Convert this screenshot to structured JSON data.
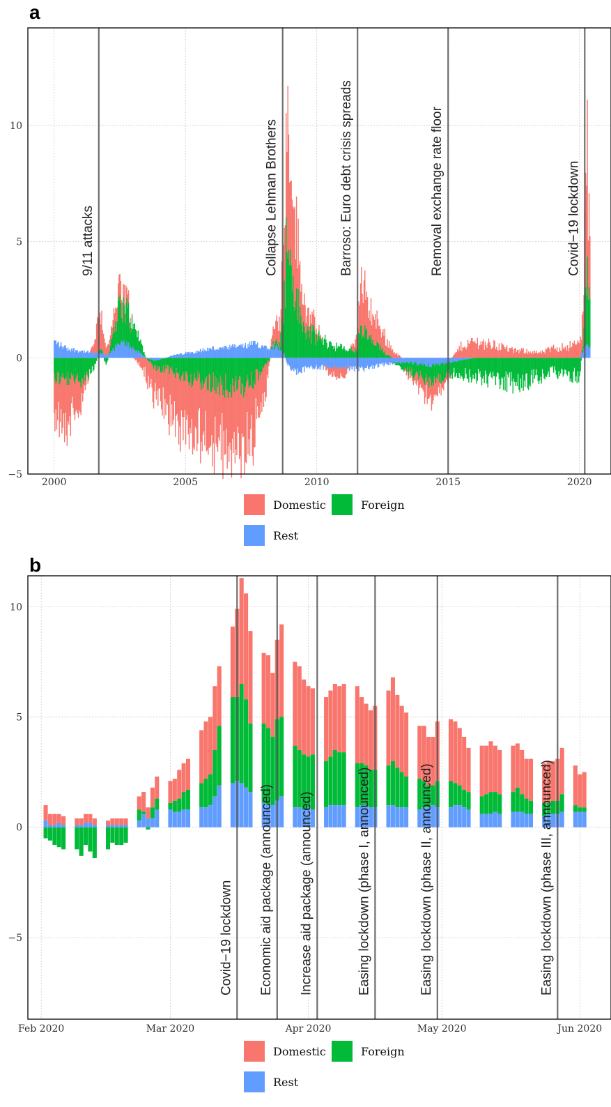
{
  "colors": {
    "Domestic": "#f8766d",
    "Foreign": "#00ba38",
    "Rest": "#619cff"
  },
  "chart_data": [
    {
      "panel": "a",
      "type": "bar",
      "stacked": true,
      "description": "Daily decomposition into Domestic, Foreign and Rest components, 2000–2020 (values approximated from the figure)",
      "x_range": [
        1999.0,
        2021.2
      ],
      "ylim": [
        -5,
        14.2
      ],
      "yticks": [
        -5,
        0,
        5,
        10
      ],
      "xticks": [
        2000,
        2005,
        2010,
        2015,
        2020
      ],
      "series_names": [
        "Domestic",
        "Foreign",
        "Rest"
      ],
      "envelope": {
        "t": [
          2000.0,
          2000.5,
          2001.0,
          2001.5,
          2001.75,
          2002.0,
          2002.3,
          2002.5,
          2002.8,
          2003.0,
          2003.3,
          2003.5,
          2003.8,
          2004.0,
          2004.5,
          2005.0,
          2005.5,
          2006.0,
          2006.5,
          2007.0,
          2007.3,
          2007.6,
          2008.0,
          2008.3,
          2008.6,
          2008.75,
          2008.85,
          2009.0,
          2009.2,
          2009.5,
          2010.0,
          2010.5,
          2011.0,
          2011.5,
          2011.7,
          2012.0,
          2012.5,
          2013.0,
          2013.5,
          2014.0,
          2014.5,
          2015.0,
          2015.5,
          2016.0,
          2016.5,
          2017.0,
          2017.5,
          2018.0,
          2018.5,
          2019.0,
          2019.5,
          2020.0,
          2020.15,
          2020.22,
          2020.3,
          2020.4
        ],
        "domestic": [
          -1.5,
          -2.0,
          -1.0,
          0.4,
          1.8,
          0.3,
          0.6,
          0.8,
          0.5,
          0.0,
          -0.3,
          -0.8,
          -1.2,
          -1.5,
          -2.0,
          -2.3,
          -2.4,
          -2.5,
          -2.5,
          -2.6,
          -2.6,
          -2.4,
          -1.5,
          0.5,
          1.2,
          3.0,
          6.0,
          5.0,
          3.0,
          1.2,
          0.3,
          -0.3,
          -0.5,
          0.5,
          2.0,
          1.3,
          0.8,
          0.2,
          -0.2,
          -0.6,
          -0.8,
          -0.2,
          0.5,
          0.7,
          0.6,
          0.5,
          0.3,
          0.3,
          0.2,
          0.4,
          0.5,
          0.6,
          1.5,
          3.5,
          5.0,
          2.0
        ],
        "foreign": [
          -0.8,
          -1.0,
          -0.9,
          -0.5,
          0.3,
          -0.3,
          1.0,
          1.6,
          1.4,
          1.0,
          0.5,
          0.0,
          -0.3,
          -0.4,
          -0.6,
          -0.8,
          -1.0,
          -1.1,
          -1.2,
          -1.3,
          -1.2,
          -1.0,
          -0.4,
          0.1,
          0.3,
          2.0,
          5.0,
          4.0,
          2.5,
          1.2,
          0.9,
          0.6,
          0.4,
          0.3,
          1.2,
          0.8,
          0.3,
          -0.1,
          -0.4,
          -0.6,
          -0.7,
          -0.5,
          -0.6,
          -0.8,
          -0.9,
          -1.0,
          -1.1,
          -1.0,
          -0.8,
          -0.6,
          -0.7,
          -0.8,
          0.5,
          2.5,
          3.0,
          1.5
        ],
        "rest": [
          0.7,
          0.4,
          0.3,
          0.2,
          0.2,
          0.1,
          0.4,
          0.6,
          0.6,
          0.4,
          0.2,
          0.0,
          -0.1,
          -0.1,
          0.1,
          0.2,
          0.3,
          0.4,
          0.4,
          0.5,
          0.5,
          0.6,
          0.5,
          0.5,
          0.4,
          0.2,
          -0.2,
          -0.4,
          -0.6,
          -0.5,
          -0.4,
          -0.4,
          -0.4,
          -0.5,
          -0.5,
          -0.4,
          -0.3,
          -0.2,
          -0.2,
          -0.3,
          -0.3,
          -0.2,
          -0.1,
          0.0,
          0.0,
          0.0,
          0.0,
          0.0,
          0.0,
          0.0,
          0.0,
          0.0,
          0.3,
          0.5,
          0.6,
          0.4
        ]
      },
      "events": [
        {
          "t": 2001.7,
          "label": "9/11 attacks"
        },
        {
          "t": 2008.7,
          "label": "Collapse Lehman Brothers"
        },
        {
          "t": 2011.55,
          "label": "Barroso: Euro debt crisis spreads"
        },
        {
          "t": 2015.0,
          "label": "Removal exchange rate floor"
        },
        {
          "t": 2020.2,
          "label": "Covid−19 lockdown"
        }
      ],
      "legend": [
        "Domestic",
        "Foreign",
        "Rest"
      ]
    },
    {
      "panel": "b",
      "type": "bar",
      "stacked": true,
      "description": "Daily decomposition, Feb–Jun 2020 (day 0 = 2020-01-30; values approximated)",
      "x_range": [
        -1.0,
        130.0
      ],
      "ylim": [
        -8.7,
        11.4
      ],
      "yticks": [
        -5,
        0,
        5,
        10
      ],
      "xticks": [
        {
          "day": 2,
          "label": "Feb 2020"
        },
        {
          "day": 31,
          "label": "Mar 2020"
        },
        {
          "day": 62,
          "label": "Apr 2020"
        },
        {
          "day": 92,
          "label": "May 2020"
        },
        {
          "day": 123,
          "label": "Jun 2020"
        }
      ],
      "series_names": [
        "Domestic",
        "Foreign",
        "Rest"
      ],
      "days": [
        3,
        4,
        5,
        6,
        7,
        10,
        11,
        12,
        13,
        14,
        17,
        18,
        19,
        20,
        21,
        24,
        25,
        26,
        27,
        28,
        31,
        32,
        33,
        34,
        35,
        38,
        39,
        40,
        41,
        42,
        45,
        46,
        47,
        48,
        49,
        52,
        53,
        54,
        55,
        56,
        59,
        60,
        61,
        62,
        63,
        66,
        67,
        68,
        69,
        70,
        73,
        74,
        75,
        76,
        77,
        80,
        81,
        82,
        83,
        84,
        87,
        88,
        89,
        90,
        91,
        94,
        95,
        96,
        97,
        98,
        101,
        102,
        103,
        104,
        105,
        108,
        109,
        110,
        111,
        112,
        115,
        116,
        117,
        118,
        119,
        122,
        123,
        124
      ],
      "domestic": [
        0.7,
        0.5,
        0.5,
        0.4,
        0.4,
        0.3,
        0.3,
        0.4,
        0.4,
        0.3,
        0.2,
        0.3,
        0.3,
        0.3,
        0.3,
        0.6,
        0.9,
        0.5,
        0.9,
        1.0,
        1.0,
        1.0,
        1.3,
        1.3,
        1.4,
        2.4,
        2.6,
        2.6,
        2.9,
        2.7,
        3.2,
        4.0,
        4.8,
        4.8,
        4.2,
        3.2,
        3.3,
        2.9,
        3.6,
        4.2,
        3.8,
        3.8,
        3.4,
        3.2,
        3.0,
        2.9,
        3.0,
        3.0,
        3.0,
        3.1,
        3.5,
        3.0,
        2.8,
        2.7,
        2.9,
        3.4,
        3.8,
        3.3,
        3.0,
        2.9,
        2.4,
        2.5,
        2.2,
        2.2,
        2.7,
        2.8,
        2.8,
        2.6,
        2.4,
        2.0,
        2.3,
        2.2,
        2.3,
        2.1,
        2.0,
        2.1,
        2.0,
        2.0,
        1.8,
        1.9,
        1.8,
        1.9,
        1.8,
        1.9,
        2.1,
        1.8,
        1.5,
        1.6
      ],
      "foreign": [
        -0.5,
        -0.6,
        -0.8,
        -0.9,
        -1.0,
        -1.0,
        -1.3,
        -0.8,
        -1.1,
        -1.4,
        -1.0,
        -0.7,
        -0.8,
        -0.8,
        -0.7,
        0.5,
        0.1,
        -0.1,
        0.5,
        0.5,
        0.3,
        0.5,
        0.6,
        0.8,
        0.9,
        1.1,
        1.3,
        1.4,
        2.1,
        2.7,
        3.9,
        3.8,
        4.5,
        4.0,
        3.1,
        3.6,
        3.5,
        3.1,
        3.7,
        3.6,
        2.8,
        2.6,
        2.5,
        2.3,
        2.5,
        2.1,
        2.2,
        2.5,
        2.4,
        2.4,
        2.0,
        1.9,
        1.8,
        1.7,
        1.7,
        1.8,
        2.0,
        1.8,
        1.6,
        1.4,
        1.4,
        1.2,
        1.0,
        0.9,
        1.2,
        1.2,
        1.0,
        0.9,
        0.8,
        0.8,
        0.8,
        0.9,
        1.0,
        0.9,
        0.9,
        0.9,
        1.1,
        0.8,
        0.7,
        0.6,
        0.6,
        0.5,
        0.6,
        0.6,
        0.8,
        0.3,
        0.2,
        0.2
      ],
      "rest": [
        0.3,
        0.1,
        0.1,
        0.2,
        0.1,
        0.1,
        0.1,
        0.2,
        0.2,
        0.1,
        0.1,
        0.1,
        0.1,
        0.1,
        0.1,
        0.3,
        0.6,
        0.4,
        0.4,
        0.8,
        0.8,
        0.7,
        0.7,
        0.8,
        0.8,
        0.9,
        0.9,
        1.0,
        1.4,
        1.9,
        2.0,
        2.1,
        2.0,
        1.8,
        1.6,
        1.1,
        1.0,
        1.0,
        1.2,
        1.4,
        0.9,
        0.9,
        0.8,
        0.9,
        0.8,
        0.9,
        1.0,
        1.0,
        1.0,
        1.0,
        0.9,
        1.0,
        1.0,
        0.9,
        0.9,
        1.0,
        1.0,
        0.9,
        0.9,
        0.9,
        0.8,
        0.9,
        0.9,
        1.0,
        0.9,
        0.9,
        1.0,
        1.0,
        0.9,
        0.8,
        0.6,
        0.6,
        0.6,
        0.7,
        0.6,
        0.7,
        0.7,
        0.7,
        0.6,
        0.6,
        0.5,
        0.6,
        0.6,
        0.6,
        0.7,
        0.7,
        0.7,
        0.7
      ],
      "events": [
        {
          "day": 46,
          "label": "Covid−19 lockdown"
        },
        {
          "day": 55,
          "label": "Economic aid package (announced)"
        },
        {
          "day": 64,
          "label": "Increase aid package (announced)"
        },
        {
          "day": 77,
          "label": "Easing lockdown (phase I, announced)"
        },
        {
          "day": 91,
          "label": "Easing lockdown (phase II, announced)"
        },
        {
          "day": 118,
          "label": "Easing lockdown (phase III, announced)"
        }
      ],
      "legend": [
        "Domestic",
        "Foreign",
        "Rest"
      ]
    }
  ]
}
